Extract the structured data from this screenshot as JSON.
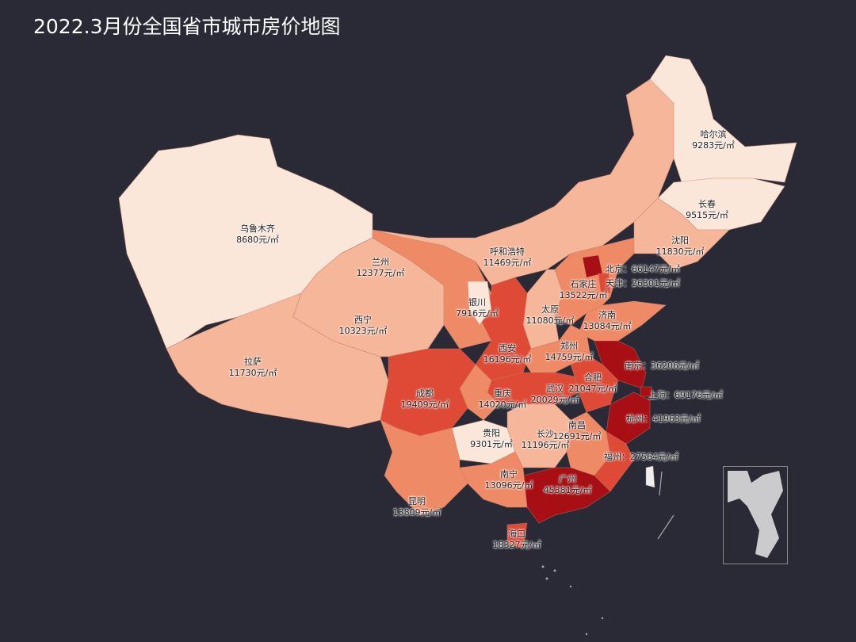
{
  "title": "2022.3月份全国省市城市房价地图",
  "unit": "元/㎡",
  "colors": {
    "background": "#2a2a36",
    "lowest": "#fbe6da",
    "low": "#f6b69a",
    "mid": "#ef8a67",
    "high": "#de4a36",
    "highest": "#a80f14"
  },
  "cities": [
    {
      "name": "哈尔滨",
      "price": "9283"
    },
    {
      "name": "长春",
      "price": "9515"
    },
    {
      "name": "沈阳",
      "price": "11830"
    },
    {
      "name": "乌鲁木齐",
      "price": "8680"
    },
    {
      "name": "呼和浩特",
      "price": "11469"
    },
    {
      "name": "兰州",
      "price": "12377"
    },
    {
      "name": "北京",
      "price": "66147"
    },
    {
      "name": "天津",
      "price": "26301"
    },
    {
      "name": "石家庄",
      "price": "13522"
    },
    {
      "name": "银川",
      "price": "7916"
    },
    {
      "name": "太原",
      "price": "11080"
    },
    {
      "name": "济南",
      "price": "13084"
    },
    {
      "name": "西宁",
      "price": "10323"
    },
    {
      "name": "西安",
      "price": "16196"
    },
    {
      "name": "郑州",
      "price": "14759"
    },
    {
      "name": "南京",
      "price": "36206"
    },
    {
      "name": "拉萨",
      "price": "11730"
    },
    {
      "name": "合肥",
      "price": "21047"
    },
    {
      "name": "成都",
      "price": "19409"
    },
    {
      "name": "重庆",
      "price": "14020"
    },
    {
      "name": "武汉",
      "price": "20029"
    },
    {
      "name": "上海",
      "price": "69176"
    },
    {
      "name": "杭州",
      "price": "41963"
    },
    {
      "name": "贵阳",
      "price": "9301"
    },
    {
      "name": "长沙",
      "price": "11196"
    },
    {
      "name": "南昌",
      "price": "12691"
    },
    {
      "name": "福州",
      "price": "27564"
    },
    {
      "name": "昆明",
      "price": "13809"
    },
    {
      "name": "南宁",
      "price": "13096"
    },
    {
      "name": "广州",
      "price": "45381"
    },
    {
      "name": "海口",
      "price": "18327"
    }
  ]
}
